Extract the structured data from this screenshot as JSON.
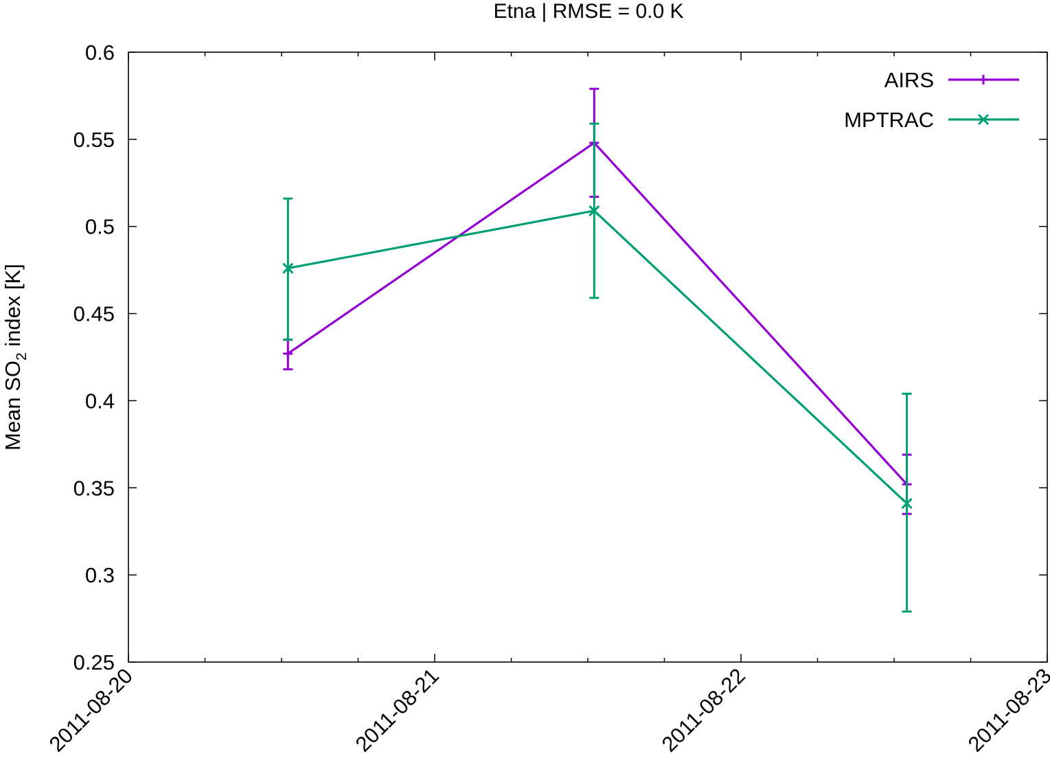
{
  "chart_data": {
    "type": "line",
    "title": "Etna | RMSE = 0.0 K",
    "ylabel": {
      "pre": "Mean SO",
      "sub": "2",
      "post": " index [K]"
    },
    "xlabel": "",
    "x_ticks": [
      "2011-08-20",
      "2011-08-21",
      "2011-08-22",
      "2011-08-23"
    ],
    "xlim": [
      "2011-08-20T00:00",
      "2011-08-23T00:00"
    ],
    "ylim": [
      0.25,
      0.6
    ],
    "y_ticks": [
      0.25,
      0.3,
      0.35,
      0.4,
      0.45,
      0.5,
      0.55,
      0.6
    ],
    "y_tick_labels": [
      "0.25",
      "0.3",
      "0.35",
      "0.4",
      "0.45",
      "0.5",
      "0.55",
      "0.6"
    ],
    "legend_position": "top-right",
    "grid": false,
    "series": [
      {
        "name": "AIRS",
        "color": "#9400d3",
        "marker": "plus",
        "points": [
          {
            "x": "2011-08-20T12:30",
            "y": 0.427,
            "err_low": 0.418,
            "err_high": 0.435
          },
          {
            "x": "2011-08-21T12:30",
            "y": 0.548,
            "err_low": 0.517,
            "err_high": 0.579
          },
          {
            "x": "2011-08-22T13:00",
            "y": 0.352,
            "err_low": 0.335,
            "err_high": 0.369
          }
        ]
      },
      {
        "name": "MPTRAC",
        "color": "#009e73",
        "marker": "cross",
        "points": [
          {
            "x": "2011-08-20T12:30",
            "y": 0.476,
            "err_low": 0.435,
            "err_high": 0.516
          },
          {
            "x": "2011-08-21T12:30",
            "y": 0.509,
            "err_low": 0.459,
            "err_high": 0.559
          },
          {
            "x": "2011-08-22T13:00",
            "y": 0.341,
            "err_low": 0.279,
            "err_high": 0.404
          }
        ]
      }
    ]
  }
}
